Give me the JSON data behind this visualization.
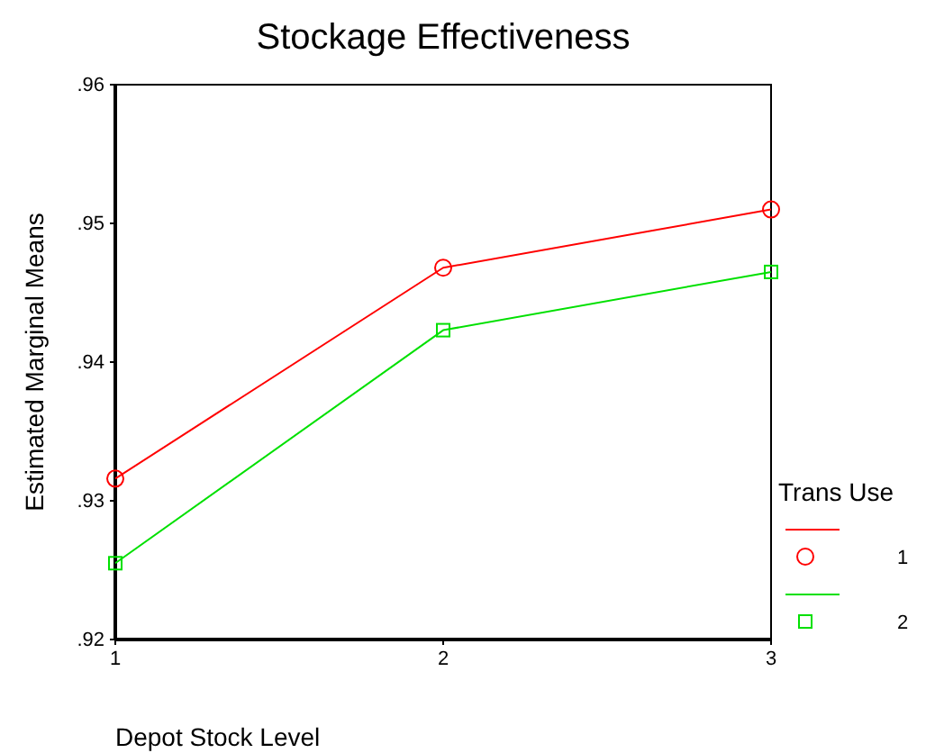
{
  "chart_data": {
    "type": "line",
    "title": "Stockage Effectiveness",
    "xlabel": "Depot Stock Level",
    "ylabel": "Estimated Marginal Means",
    "legend_title": "Trans Use",
    "categories": [
      "1",
      "2",
      "3"
    ],
    "series": [
      {
        "name": "1",
        "color": "#ff0000",
        "marker": "circle",
        "values": [
          0.9316,
          0.9468,
          0.951
        ]
      },
      {
        "name": "2",
        "color": "#00e000",
        "marker": "square",
        "values": [
          0.9255,
          0.9423,
          0.9465
        ]
      }
    ],
    "ylim": [
      0.92,
      0.96
    ],
    "yticks": [
      {
        "value": 0.92,
        "label": ".92"
      },
      {
        "value": 0.93,
        "label": ".93"
      },
      {
        "value": 0.94,
        "label": ".94"
      },
      {
        "value": 0.95,
        "label": ".95"
      },
      {
        "value": 0.96,
        "label": ".96"
      }
    ],
    "grid": false,
    "legend": "right"
  }
}
